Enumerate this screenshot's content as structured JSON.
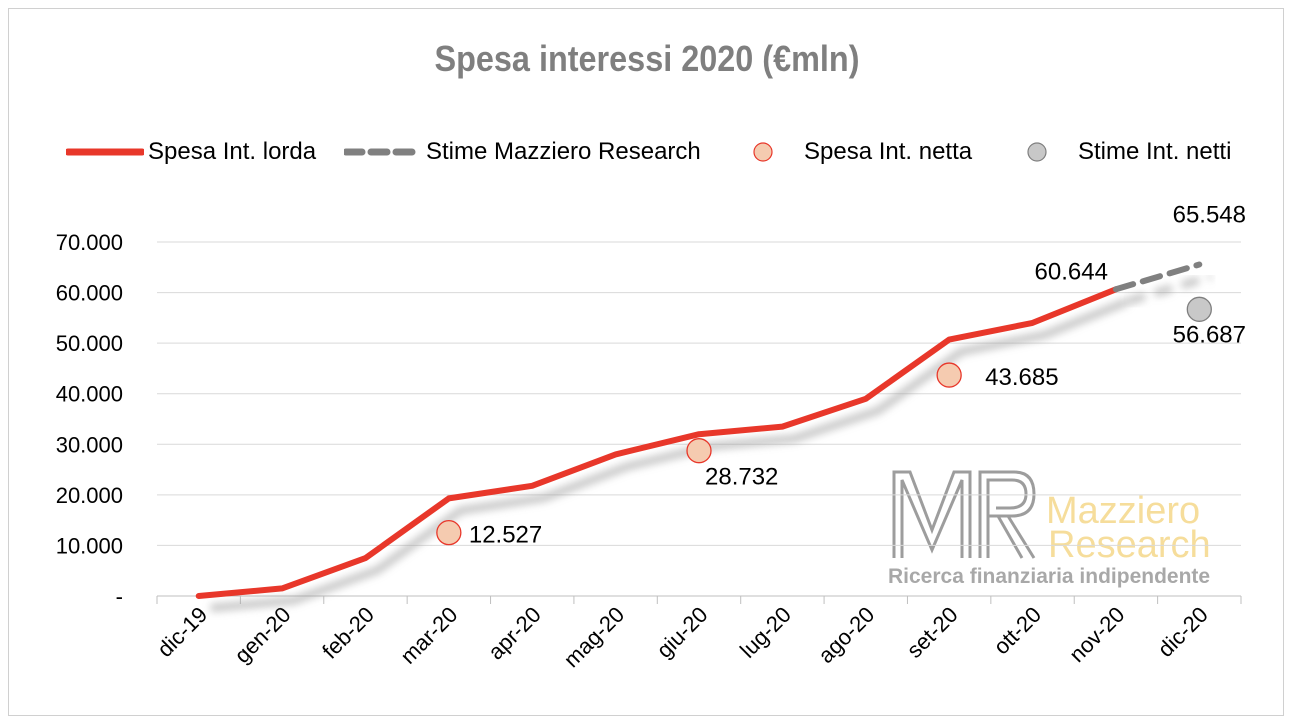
{
  "chart_data": {
    "type": "line",
    "title": "Spesa interessi 2020 (€mln)",
    "categories": [
      "dic-19",
      "gen-20",
      "feb-20",
      "mar-20",
      "apr-20",
      "mag-20",
      "giu-20",
      "lug-20",
      "ago-20",
      "set-20",
      "ott-20",
      "nov-20",
      "dic-20"
    ],
    "y_tick_labels": [
      "-",
      "10.000",
      "20.000",
      "30.000",
      "40.000",
      "50.000",
      "60.000",
      "70.000"
    ],
    "ylim": [
      0,
      70000
    ],
    "grid": true,
    "legend_position": "top",
    "series": [
      {
        "name": "Spesa Int. lorda",
        "style": "solid-line",
        "color": "#e8372a",
        "points": [
          {
            "x": "dic-19",
            "y": 0
          },
          {
            "x": "gen-20",
            "y": 1500
          },
          {
            "x": "feb-20",
            "y": 7500
          },
          {
            "x": "mar-20",
            "y": 19300
          },
          {
            "x": "apr-20",
            "y": 21800
          },
          {
            "x": "mag-20",
            "y": 28000
          },
          {
            "x": "giu-20",
            "y": 32000
          },
          {
            "x": "lug-20",
            "y": 33500
          },
          {
            "x": "ago-20",
            "y": 39000
          },
          {
            "x": "set-20",
            "y": 50700
          },
          {
            "x": "ott-20",
            "y": 54000
          },
          {
            "x": "nov-20",
            "y": 60644
          }
        ],
        "labels": [
          {
            "x": "nov-20",
            "text": "60.644"
          }
        ]
      },
      {
        "name": "Stime Mazziero Research",
        "style": "dashed-line",
        "color": "#808080",
        "points": [
          {
            "x": "nov-20",
            "y": 60644
          },
          {
            "x": "dic-20",
            "y": 65548
          }
        ],
        "labels": [
          {
            "x": "dic-20",
            "text": "65.548"
          }
        ]
      },
      {
        "name": "Spesa Int. netta",
        "style": "marker",
        "color": "#f5cbb0",
        "edge_color": "#e8372a",
        "points": [
          {
            "x": "mar-20",
            "y": 12527
          },
          {
            "x": "giu-20",
            "y": 28732
          },
          {
            "x": "set-20",
            "y": 43685
          }
        ],
        "labels": [
          {
            "x": "mar-20",
            "text": "12.527"
          },
          {
            "x": "giu-20",
            "text": "28.732"
          },
          {
            "x": "set-20",
            "text": "43.685"
          }
        ]
      },
      {
        "name": "Stime Int. netti",
        "style": "marker",
        "color": "#c8c8c8",
        "edge_color": "#7f7f7f",
        "points": [
          {
            "x": "dic-20",
            "y": 56687
          }
        ],
        "labels": [
          {
            "x": "dic-20",
            "text": "56.687"
          }
        ]
      }
    ]
  },
  "watermark": {
    "monogram": "MR",
    "line1": "Mazziero",
    "line2": "Research",
    "tagline": "Ricerca finanziaria indipendente"
  }
}
